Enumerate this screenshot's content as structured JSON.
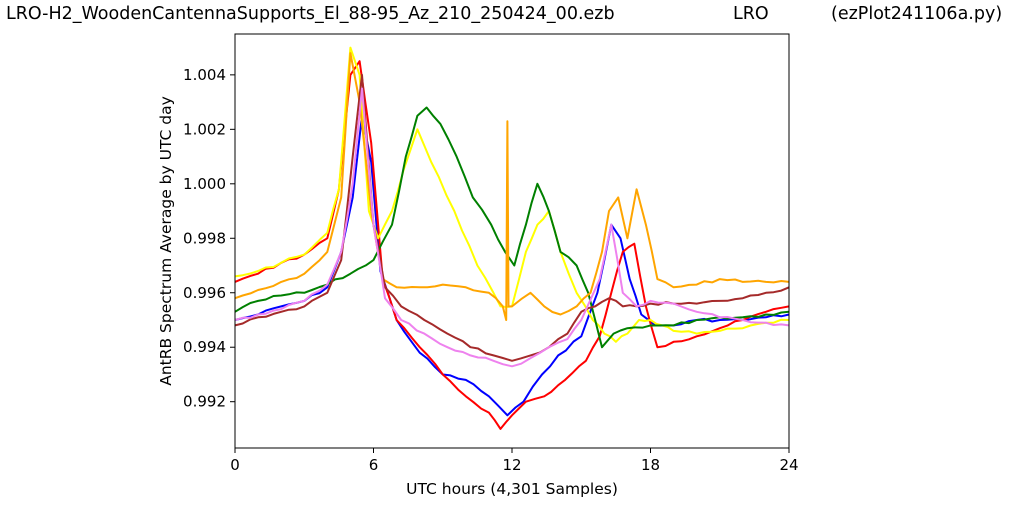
{
  "header": {
    "file_title": "LRO-H2_WoodenCantennaSupports_El_88-95_Az_210_250424_00.ezb",
    "site": "LRO",
    "program": "(ezPlot241106a.py)"
  },
  "chart_data": {
    "type": "line",
    "title": "",
    "xlabel": "UTC hours  (4,301 Samples)",
    "ylabel": "AntRB Spectrum Average by UTC day",
    "xlim": [
      0,
      24
    ],
    "ylim": [
      0.9903,
      1.0055
    ],
    "xticks": [
      0,
      6,
      12,
      18,
      24
    ],
    "xtick_labels": [
      "0",
      "6",
      "12",
      "18",
      "24"
    ],
    "yticks": [
      0.992,
      0.994,
      0.996,
      0.998,
      1.0,
      1.002,
      1.004
    ],
    "ytick_labels": [
      "0.992",
      "0.994",
      "0.996",
      "0.998",
      "1.000",
      "1.002",
      "1.004"
    ],
    "grid": false,
    "legend": "none",
    "series": [
      {
        "color": "#0000ff",
        "x": [
          0,
          1,
          2,
          3,
          4,
          4.6,
          5.1,
          5.5,
          5.9,
          6.3,
          7,
          8,
          9,
          10,
          11,
          11.8,
          12.5,
          13.3,
          14,
          15,
          15.7,
          16.3,
          16.7,
          17.1,
          17.6,
          18.2,
          19,
          20,
          21,
          22,
          23,
          24
        ],
        "y": [
          0.995,
          0.9952,
          0.9955,
          0.9957,
          0.9962,
          0.9975,
          0.9995,
          1.0025,
          1.0008,
          0.9968,
          0.995,
          0.9938,
          0.993,
          0.9928,
          0.9922,
          0.9915,
          0.992,
          0.993,
          0.9937,
          0.9944,
          0.996,
          0.9985,
          0.998,
          0.9965,
          0.9952,
          0.9948,
          0.9948,
          0.995,
          0.995,
          0.995,
          0.9951,
          0.9952
        ]
      },
      {
        "color": "#ff0000",
        "x": [
          0,
          1,
          2,
          3,
          4,
          4.5,
          5,
          5.4,
          5.9,
          6.4,
          7,
          8,
          9,
          10,
          11,
          11.5,
          12,
          12.6,
          13.4,
          14.3,
          15.2,
          15.8,
          16.3,
          16.8,
          17.3,
          17.8,
          18.3,
          19,
          20,
          21,
          22,
          23,
          24
        ],
        "y": [
          0.9964,
          0.9967,
          0.9971,
          0.9974,
          0.998,
          0.9998,
          1.004,
          1.0045,
          1.0015,
          0.9965,
          0.995,
          0.994,
          0.993,
          0.9922,
          0.9916,
          0.991,
          0.9915,
          0.992,
          0.9922,
          0.9928,
          0.9935,
          0.9944,
          0.996,
          0.9975,
          0.9978,
          0.9955,
          0.994,
          0.9942,
          0.9944,
          0.9947,
          0.995,
          0.9953,
          0.9955
        ]
      },
      {
        "color": "#ffff00",
        "x": [
          0,
          1,
          2,
          3,
          4,
          4.5,
          5,
          5.4,
          5.8,
          6.2,
          6.8,
          7.3,
          7.9,
          8.5,
          9.5,
          10.5,
          11.5,
          12,
          12.6,
          13.1,
          13.6,
          14.1,
          14.8,
          15.5,
          16,
          16.5,
          17,
          17.5,
          18,
          18.5,
          19,
          20,
          21,
          22,
          23,
          24
        ],
        "y": [
          0.9966,
          0.9968,
          0.9971,
          0.9974,
          0.9982,
          0.9998,
          1.005,
          1.004,
          0.999,
          0.998,
          0.999,
          1.0005,
          1.002,
          1.0008,
          0.999,
          0.997,
          0.9955,
          0.9955,
          0.9975,
          0.9985,
          0.999,
          0.9975,
          0.996,
          0.995,
          0.9945,
          0.9942,
          0.9945,
          0.995,
          0.995,
          0.9948,
          0.9946,
          0.9945,
          0.9946,
          0.9947,
          0.9949,
          0.995
        ]
      },
      {
        "color": "#008000",
        "x": [
          0,
          1,
          2,
          3,
          4,
          5,
          6,
          6.8,
          7.4,
          7.9,
          8.3,
          8.9,
          9.6,
          10.3,
          11.1,
          11.7,
          12.1,
          12.6,
          13.1,
          13.6,
          14.1,
          14.8,
          15.3,
          15.9,
          16.4,
          17,
          18,
          19,
          20,
          21,
          22,
          23,
          24
        ],
        "y": [
          0.9953,
          0.9957,
          0.9959,
          0.996,
          0.9963,
          0.9967,
          0.9972,
          0.9985,
          1.001,
          1.0025,
          1.0028,
          1.0022,
          1.001,
          0.9995,
          0.9985,
          0.9975,
          0.997,
          0.9985,
          1.0,
          0.999,
          0.9975,
          0.997,
          0.996,
          0.994,
          0.9945,
          0.9947,
          0.9948,
          0.9948,
          0.995,
          0.9951,
          0.9951,
          0.9952,
          0.9953
        ]
      },
      {
        "color": "#ffa500",
        "x": [
          0,
          1,
          2,
          3,
          4,
          4.6,
          5,
          5.4,
          5.9,
          6.4,
          7,
          8,
          9,
          10,
          11,
          11.6,
          11.75,
          11.8,
          11.85,
          12,
          12.8,
          13.4,
          14.1,
          14.8,
          15.4,
          15.9,
          16.2,
          16.6,
          17,
          17.4,
          17.8,
          18.3,
          19,
          20,
          21,
          22,
          23,
          24
        ],
        "y": [
          0.9958,
          0.9961,
          0.9964,
          0.9967,
          0.9975,
          0.9995,
          1.0048,
          1.003,
          0.999,
          0.9965,
          0.9962,
          0.9962,
          0.9963,
          0.9962,
          0.996,
          0.9955,
          0.995,
          1.0023,
          0.9955,
          0.9955,
          0.996,
          0.9955,
          0.9952,
          0.9955,
          0.996,
          0.9975,
          0.999,
          0.9995,
          0.998,
          0.9998,
          0.9985,
          0.9965,
          0.9962,
          0.9963,
          0.9965,
          0.9964,
          0.9964,
          0.9964
        ]
      },
      {
        "color": "#a52a2a",
        "x": [
          0,
          1,
          2,
          3,
          4,
          4.6,
          5.1,
          5.5,
          6,
          6.5,
          7.2,
          8.2,
          9.2,
          10.2,
          11.2,
          12,
          12.8,
          13.6,
          14.4,
          15,
          15.6,
          16.2,
          16.8,
          17.4,
          18,
          19,
          20,
          21,
          22,
          23,
          24
        ],
        "y": [
          0.9948,
          0.9951,
          0.9953,
          0.9955,
          0.996,
          0.9972,
          1.001,
          1.004,
          0.9985,
          0.9962,
          0.9955,
          0.995,
          0.9945,
          0.994,
          0.9937,
          0.9935,
          0.9937,
          0.994,
          0.9945,
          0.9953,
          0.9955,
          0.9958,
          0.9955,
          0.9955,
          0.9956,
          0.9956,
          0.9956,
          0.9957,
          0.9958,
          0.996,
          0.9962
        ]
      },
      {
        "color": "#ee82ee",
        "x": [
          0,
          1,
          2,
          3,
          4,
          4.6,
          5.1,
          5.5,
          6,
          6.5,
          7.2,
          8.2,
          9.2,
          10.2,
          11.2,
          12,
          12.8,
          13.6,
          14.4,
          15,
          15.8,
          16.3,
          16.8,
          17.4,
          18,
          19,
          20,
          21,
          22,
          23,
          24
        ],
        "y": [
          0.995,
          0.9952,
          0.9954,
          0.9957,
          0.9963,
          0.9975,
          1.0,
          1.0035,
          0.9985,
          0.9958,
          0.995,
          0.9945,
          0.994,
          0.9937,
          0.9935,
          0.9933,
          0.9936,
          0.994,
          0.9943,
          0.995,
          0.9965,
          0.9985,
          0.996,
          0.9955,
          0.9957,
          0.9956,
          0.9953,
          0.9951,
          0.995,
          0.9949,
          0.9948
        ]
      }
    ]
  }
}
